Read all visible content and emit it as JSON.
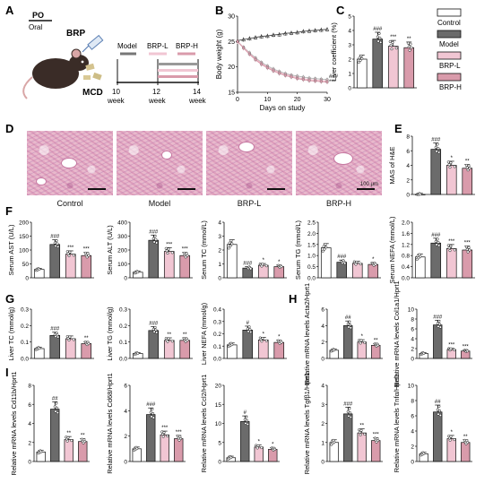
{
  "figure": {
    "panel_letters": [
      "A",
      "B",
      "C",
      "D",
      "E",
      "F",
      "G",
      "H",
      "I"
    ]
  },
  "panel_a": {
    "po": "PO",
    "oral": "Oral",
    "brp": "BRP",
    "mcd": "MCD",
    "groups": [
      "Model",
      "BRP-L",
      "BRP-H"
    ],
    "weeks": [
      "10",
      "12",
      "14"
    ],
    "week_word": "week"
  },
  "legend": {
    "entries": [
      {
        "name": "Control",
        "color": "#ffffff"
      },
      {
        "name": "Model",
        "color": "#6b6b6b"
      },
      {
        "name": "BRP-L",
        "color": "#f1c6d3"
      },
      {
        "name": "BRP-H",
        "color": "#d99bab"
      }
    ]
  },
  "histology": {
    "labels": [
      "Control",
      "Model",
      "BRP-L",
      "BRP-H"
    ],
    "scale": "100 μm"
  },
  "colors": {
    "control": "#ffffff",
    "model": "#6b6b6b",
    "brp_l": "#f1c6d3",
    "brp_h": "#d99bab"
  },
  "chart_data": [
    {
      "id": "B",
      "type": "line",
      "xlabel": "Days on study",
      "ylabel": "Body weight (g)",
      "xlim": [
        0,
        30
      ],
      "ylim": [
        15,
        30
      ],
      "xticks": [
        "0",
        "10",
        "20",
        "30"
      ],
      "yticks": [
        "15",
        "20",
        "25",
        "30"
      ],
      "x": [
        0,
        2,
        4,
        6,
        8,
        10,
        12,
        14,
        16,
        18,
        20,
        22,
        24,
        26,
        28,
        30
      ],
      "series": [
        {
          "color": "#555555",
          "values": [
            25.2,
            25.4,
            25.6,
            25.8,
            26.0,
            26.1,
            26.3,
            26.4,
            26.6,
            26.7,
            26.8,
            27.0,
            27.1,
            27.2,
            27.3,
            27.4
          ]
        },
        {
          "color": "#bbbbbb",
          "values": [
            25.0,
            23.9,
            22.8,
            21.8,
            20.9,
            20.2,
            19.6,
            19.1,
            18.7,
            18.4,
            18.2,
            18.0,
            17.8,
            17.7,
            17.6,
            17.5
          ]
        },
        {
          "color": "#f1b8c8",
          "values": [
            25.0,
            23.8,
            22.6,
            21.6,
            20.7,
            20.0,
            19.4,
            18.9,
            18.5,
            18.2,
            17.9,
            17.7,
            17.5,
            17.4,
            17.3,
            17.2
          ]
        },
        {
          "color": "#d99bab",
          "values": [
            25.0,
            23.7,
            22.5,
            21.4,
            20.5,
            19.8,
            19.2,
            18.7,
            18.3,
            18.0,
            17.7,
            17.5,
            17.3,
            17.2,
            17.1,
            17.0
          ]
        }
      ],
      "annotations": [
        "###",
        "***"
      ]
    },
    {
      "id": "C",
      "type": "bar",
      "ylabel": "Liver coefficient (%)",
      "ylim": [
        0,
        5
      ],
      "yticks": [
        "0",
        "1",
        "2",
        "3",
        "4",
        "5"
      ],
      "values": [
        2.0,
        3.4,
        2.9,
        2.8
      ],
      "sig": [
        "",
        "###",
        "***",
        "**"
      ]
    },
    {
      "id": "E",
      "type": "bar",
      "ylabel": "MAS of H&E",
      "ylim": [
        0,
        8
      ],
      "yticks": [
        "0",
        "2",
        "4",
        "6",
        "8"
      ],
      "values": [
        0.0,
        6.2,
        4.0,
        3.6
      ],
      "sig": [
        "",
        "###",
        "*",
        "**"
      ]
    },
    {
      "id": "F1",
      "type": "bar",
      "ylabel": "Serum AST (U/L)",
      "ylim": [
        0,
        200
      ],
      "yticks": [
        "0",
        "50",
        "100",
        "150",
        "200"
      ],
      "values": [
        30,
        120,
        85,
        80
      ],
      "sig": [
        "",
        "###",
        "***",
        "***"
      ]
    },
    {
      "id": "F2",
      "type": "bar",
      "ylabel": "Serum ALT (U/L)",
      "ylim": [
        0,
        400
      ],
      "yticks": [
        "0",
        "100",
        "200",
        "300",
        "400"
      ],
      "values": [
        40,
        270,
        190,
        160
      ],
      "sig": [
        "",
        "###",
        "***",
        "***"
      ]
    },
    {
      "id": "F3",
      "type": "bar",
      "ylabel": "Serum TC (mmol/L)",
      "ylim": [
        0,
        4
      ],
      "yticks": [
        "0",
        "1",
        "2",
        "3",
        "4"
      ],
      "values": [
        2.4,
        0.7,
        0.9,
        0.8
      ],
      "sig": [
        "",
        "###",
        "*",
        "*"
      ]
    },
    {
      "id": "F4",
      "type": "bar",
      "ylabel": "Serum TG (mmol/L)",
      "ylim": [
        0,
        2.5
      ],
      "yticks": [
        "0.0",
        "0.5",
        "1.0",
        "1.5",
        "2.0",
        "2.5"
      ],
      "values": [
        1.35,
        0.7,
        0.65,
        0.6
      ],
      "sig": [
        "",
        "###",
        "",
        "*"
      ]
    },
    {
      "id": "F5",
      "type": "bar",
      "ylabel": "Serum NEFA (mmol/L)",
      "ylim": [
        0,
        2.0
      ],
      "yticks": [
        "0.0",
        "0.4",
        "0.8",
        "1.2",
        "1.6",
        "2.0"
      ],
      "values": [
        0.75,
        1.25,
        1.05,
        1.0
      ],
      "sig": [
        "",
        "###",
        "***",
        "***"
      ]
    },
    {
      "id": "G1",
      "type": "bar",
      "ylabel": "Liver TC (mmol/g)",
      "ylim": [
        0,
        0.3
      ],
      "yticks": [
        "0.0",
        "0.1",
        "0.2",
        "0.3"
      ],
      "values": [
        0.06,
        0.14,
        0.12,
        0.09
      ],
      "sig": [
        "",
        "###",
        "",
        "**"
      ]
    },
    {
      "id": "G2",
      "type": "bar",
      "ylabel": "Liver TG (mmol/g)",
      "ylim": [
        0,
        0.3
      ],
      "yticks": [
        "0.0",
        "0.1",
        "0.2",
        "0.3"
      ],
      "values": [
        0.03,
        0.17,
        0.11,
        0.11
      ],
      "sig": [
        "",
        "###",
        "**",
        "**"
      ]
    },
    {
      "id": "G3",
      "type": "bar",
      "ylabel": "Liver NEFA (mmol/g)",
      "ylim": [
        0,
        0.4
      ],
      "yticks": [
        "0.0",
        "0.1",
        "0.2",
        "0.3",
        "0.4"
      ],
      "values": [
        0.11,
        0.23,
        0.15,
        0.13
      ],
      "sig": [
        "",
        "#",
        "*",
        "*"
      ]
    },
    {
      "id": "H1",
      "type": "bar",
      "ylabel": "Relative mRNA levels Acta2/Hprt1",
      "ylim": [
        0,
        6
      ],
      "yticks": [
        "0",
        "2",
        "4",
        "6"
      ],
      "values": [
        1.0,
        4.0,
        2.0,
        1.6
      ],
      "sig": [
        "",
        "##",
        "*",
        "**"
      ]
    },
    {
      "id": "H2",
      "type": "bar",
      "ylabel": "Relative mRNA levels Col1a1/Hprt1",
      "ylim": [
        0,
        10
      ],
      "yticks": [
        "0",
        "2",
        "4",
        "6",
        "8",
        "10"
      ],
      "values": [
        1.0,
        6.8,
        1.8,
        1.5
      ],
      "sig": [
        "",
        "###",
        "***",
        "***"
      ]
    },
    {
      "id": "I1",
      "type": "bar",
      "ylabel": "Relative mRNA levels Cd11b/Hprt1",
      "ylim": [
        0,
        8
      ],
      "yticks": [
        "0",
        "2",
        "4",
        "6",
        "8"
      ],
      "values": [
        1.0,
        5.5,
        2.3,
        2.1
      ],
      "sig": [
        "",
        "##",
        "**",
        "**"
      ]
    },
    {
      "id": "I2",
      "type": "bar",
      "ylabel": "Relative mRNA levels Cd68/Hprt1",
      "ylim": [
        0,
        6
      ],
      "yticks": [
        "0",
        "2",
        "4",
        "6"
      ],
      "values": [
        1.0,
        3.7,
        2.1,
        1.8
      ],
      "sig": [
        "",
        "###",
        "***",
        "***"
      ]
    },
    {
      "id": "I3",
      "type": "bar",
      "ylabel": "Relative mRNA levels Ccl2/Hprt1",
      "ylim": [
        0,
        20
      ],
      "yticks": [
        "0",
        "5",
        "10",
        "15",
        "20"
      ],
      "values": [
        1.0,
        10.5,
        3.8,
        3.2
      ],
      "sig": [
        "",
        "#",
        "*",
        "*"
      ]
    },
    {
      "id": "I4",
      "type": "bar",
      "ylabel": "Relative mRNA levels Tgfβ1/Hprt1",
      "ylim": [
        0,
        4
      ],
      "yticks": [
        "0",
        "1",
        "2",
        "3",
        "4"
      ],
      "values": [
        1.0,
        2.5,
        1.5,
        1.1
      ],
      "sig": [
        "",
        "###",
        "**",
        "***"
      ]
    },
    {
      "id": "I5",
      "type": "bar",
      "ylabel": "Relative mRNA levels Tnfα/Hprt1",
      "ylim": [
        0,
        10
      ],
      "yticks": [
        "0",
        "2",
        "4",
        "6",
        "8",
        "10"
      ],
      "values": [
        1.0,
        6.5,
        3.0,
        2.5
      ],
      "sig": [
        "",
        "##",
        "*",
        "**"
      ]
    }
  ]
}
